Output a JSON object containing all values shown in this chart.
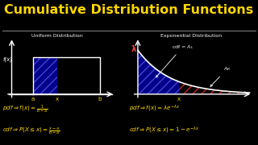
{
  "title": "Cumulative Distribution Functions",
  "title_color": "#FFD700",
  "background_color": "#000000",
  "left_subtitle": "Uniform Distribution",
  "right_subtitle": "Exponential Distribution",
  "subtitle_color": "#FFFFFF",
  "uniform_rect_color": "#00008B",
  "exp_fill_color": "#00008B",
  "curve_color": "#FFFFFF",
  "axes_color": "#FFFFFF",
  "text_color": "#FFFFFF",
  "formula_color": "#FFD700",
  "lambda_color": "#FF4444",
  "separator_color": "#888888"
}
